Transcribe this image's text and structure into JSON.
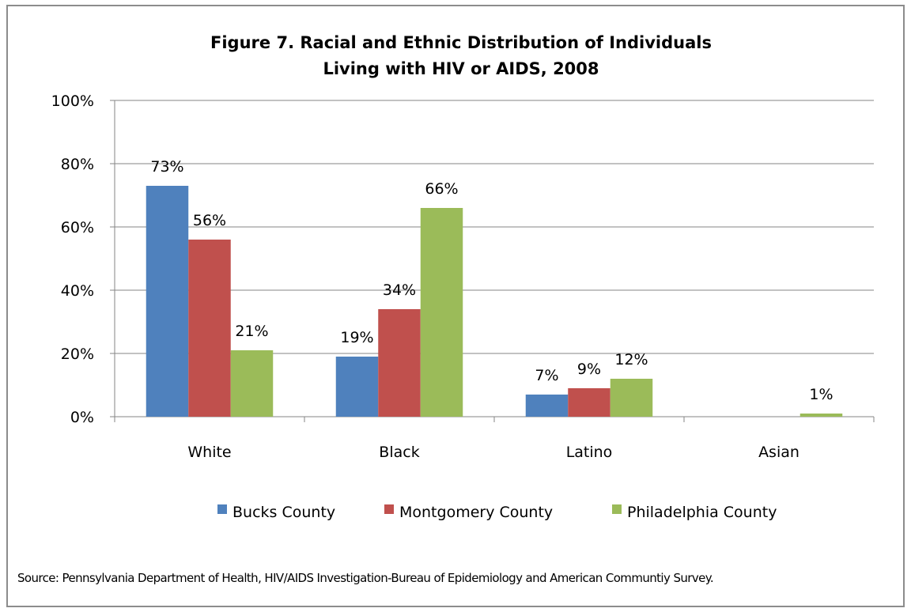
{
  "chart_data": {
    "type": "bar",
    "title": [
      "Figure 7. Racial and Ethnic Distribution of Individuals",
      "Living with HIV or AIDS, 2008"
    ],
    "categories": [
      "White",
      "Black",
      "Latino",
      "Asian"
    ],
    "series": [
      {
        "name": "Bucks County",
        "color": "#4f81bd",
        "values": [
          73,
          19,
          7,
          null
        ],
        "labels": [
          "73%",
          "19%",
          "7%",
          ""
        ]
      },
      {
        "name": "Montgomery County",
        "color": "#c0504d",
        "values": [
          56,
          34,
          9,
          null
        ],
        "labels": [
          "56%",
          "34%",
          "9%",
          ""
        ]
      },
      {
        "name": "Philadelphia County",
        "color": "#9bbb59",
        "values": [
          21,
          66,
          12,
          1
        ],
        "labels": [
          "21%",
          "66%",
          "12%",
          "1%"
        ]
      }
    ],
    "y_ticks": [
      "0%",
      "20%",
      "40%",
      "60%",
      "80%",
      "100%"
    ],
    "ylim": [
      0,
      100
    ],
    "grid": true,
    "legend_position": "bottom"
  },
  "source_note": "Source: Pennsylvania Department of Health, HIV/AIDS Investigation-Bureau of Epidemiology and American Communtiy Survey."
}
